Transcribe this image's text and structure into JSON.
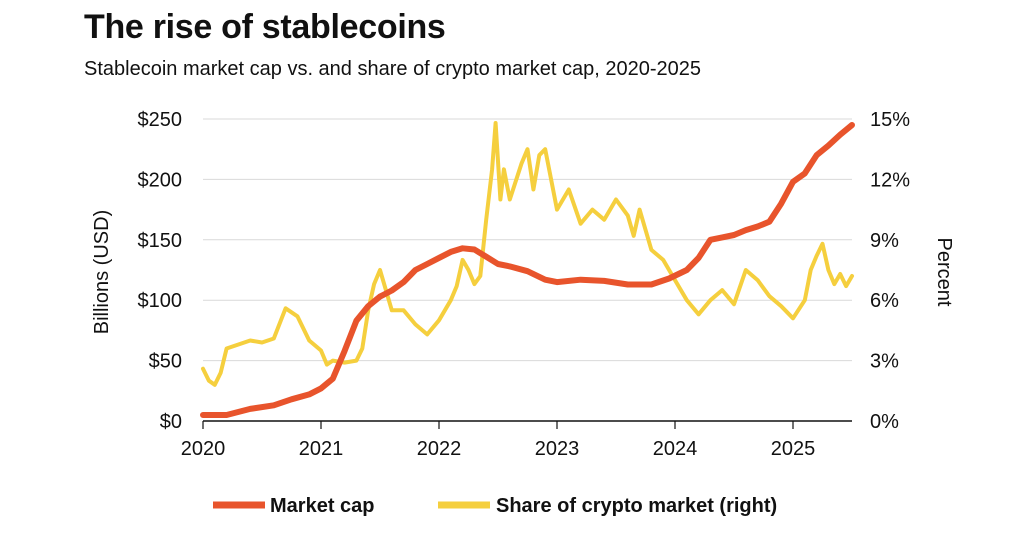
{
  "chart_data": {
    "type": "line",
    "title": "The rise of stablecoins",
    "subtitle": "Stablecoin market cap vs. and share of crypto market cap, 2020-2025",
    "ylabel_left": "Billions (USD)",
    "ylabel_right": "Percent",
    "xlim": [
      2020,
      2025.5
    ],
    "ylim_left": [
      0,
      250
    ],
    "ylim_right": [
      0,
      15
    ],
    "x_ticks": [
      "2020",
      "2021",
      "2022",
      "2023",
      "2024",
      "2025"
    ],
    "x_tick_values": [
      2020,
      2021,
      2022,
      2023,
      2024,
      2025
    ],
    "y_ticks_left": [
      "$0",
      "$50",
      "$100",
      "$150",
      "$200",
      "$250"
    ],
    "y_tick_values_left": [
      0,
      50,
      100,
      150,
      200,
      250
    ],
    "y_ticks_right": [
      "0%",
      "3%",
      "6%",
      "9%",
      "12%",
      "15%"
    ],
    "y_tick_values_right": [
      0,
      3,
      6,
      9,
      12,
      15
    ],
    "grid": true,
    "legend_position": "bottom",
    "colors": {
      "market_cap": "#e8542c",
      "share": "#f5cf3e",
      "grid": "#d9d9d9"
    },
    "series": [
      {
        "name": "Market cap",
        "axis": "left",
        "x": [
          2020.0,
          2020.2,
          2020.4,
          2020.6,
          2020.75,
          2020.9,
          2021.0,
          2021.1,
          2021.2,
          2021.3,
          2021.4,
          2021.5,
          2021.6,
          2021.7,
          2021.8,
          2021.9,
          2022.0,
          2022.1,
          2022.2,
          2022.3,
          2022.4,
          2022.5,
          2022.6,
          2022.75,
          2022.9,
          2023.0,
          2023.2,
          2023.4,
          2023.6,
          2023.8,
          2023.95,
          2024.1,
          2024.2,
          2024.3,
          2024.4,
          2024.5,
          2024.6,
          2024.7,
          2024.8,
          2024.9,
          2025.0,
          2025.1,
          2025.2,
          2025.3,
          2025.4,
          2025.5
        ],
        "values": [
          5,
          5,
          10,
          13,
          18,
          22,
          27,
          35,
          58,
          83,
          95,
          103,
          108,
          115,
          125,
          130,
          135,
          140,
          143,
          142,
          136,
          130,
          128,
          124,
          117,
          115,
          117,
          116,
          113,
          113,
          118,
          125,
          135,
          150,
          152,
          154,
          158,
          161,
          165,
          180,
          198,
          205,
          220,
          228,
          237,
          245
        ]
      },
      {
        "name": "Share of crypto market (right)",
        "axis": "right",
        "x": [
          2020.0,
          2020.05,
          2020.1,
          2020.15,
          2020.2,
          2020.3,
          2020.4,
          2020.5,
          2020.6,
          2020.7,
          2020.8,
          2020.9,
          2021.0,
          2021.05,
          2021.1,
          2021.2,
          2021.3,
          2021.35,
          2021.4,
          2021.45,
          2021.5,
          2021.55,
          2021.6,
          2021.7,
          2021.8,
          2021.9,
          2022.0,
          2022.1,
          2022.15,
          2022.2,
          2022.25,
          2022.3,
          2022.35,
          2022.4,
          2022.45,
          2022.48,
          2022.52,
          2022.55,
          2022.6,
          2022.7,
          2022.75,
          2022.8,
          2022.85,
          2022.9,
          2022.95,
          2023.0,
          2023.1,
          2023.2,
          2023.3,
          2023.4,
          2023.5,
          2023.6,
          2023.65,
          2023.7,
          2023.8,
          2023.9,
          2024.0,
          2024.1,
          2024.2,
          2024.3,
          2024.4,
          2024.5,
          2024.6,
          2024.7,
          2024.8,
          2024.9,
          2025.0,
          2025.1,
          2025.15,
          2025.2,
          2025.25,
          2025.3,
          2025.35,
          2025.4,
          2025.45,
          2025.5
        ],
        "values": [
          2.6,
          2.0,
          1.8,
          2.4,
          3.6,
          3.8,
          4.0,
          3.9,
          4.1,
          5.6,
          5.2,
          4.0,
          3.5,
          2.8,
          3.0,
          2.9,
          3.0,
          3.6,
          5.5,
          6.8,
          7.5,
          6.5,
          5.5,
          5.5,
          4.8,
          4.3,
          5.0,
          6.0,
          6.7,
          8.0,
          7.5,
          6.8,
          7.2,
          10.0,
          12.5,
          14.8,
          11.0,
          12.5,
          11.0,
          12.8,
          13.5,
          11.5,
          13.2,
          13.5,
          12.0,
          10.5,
          11.5,
          9.8,
          10.5,
          10.0,
          11.0,
          10.2,
          9.2,
          10.5,
          8.5,
          8.0,
          7.0,
          6.0,
          5.3,
          6.0,
          6.5,
          5.8,
          7.5,
          7.0,
          6.2,
          5.7,
          5.1,
          6.0,
          7.5,
          8.2,
          8.8,
          7.5,
          6.8,
          7.3,
          6.7,
          7.2
        ]
      }
    ],
    "legend": [
      {
        "label": "Market cap",
        "key": "market_cap"
      },
      {
        "label": "Share of crypto market (right)",
        "key": "share"
      }
    ]
  }
}
